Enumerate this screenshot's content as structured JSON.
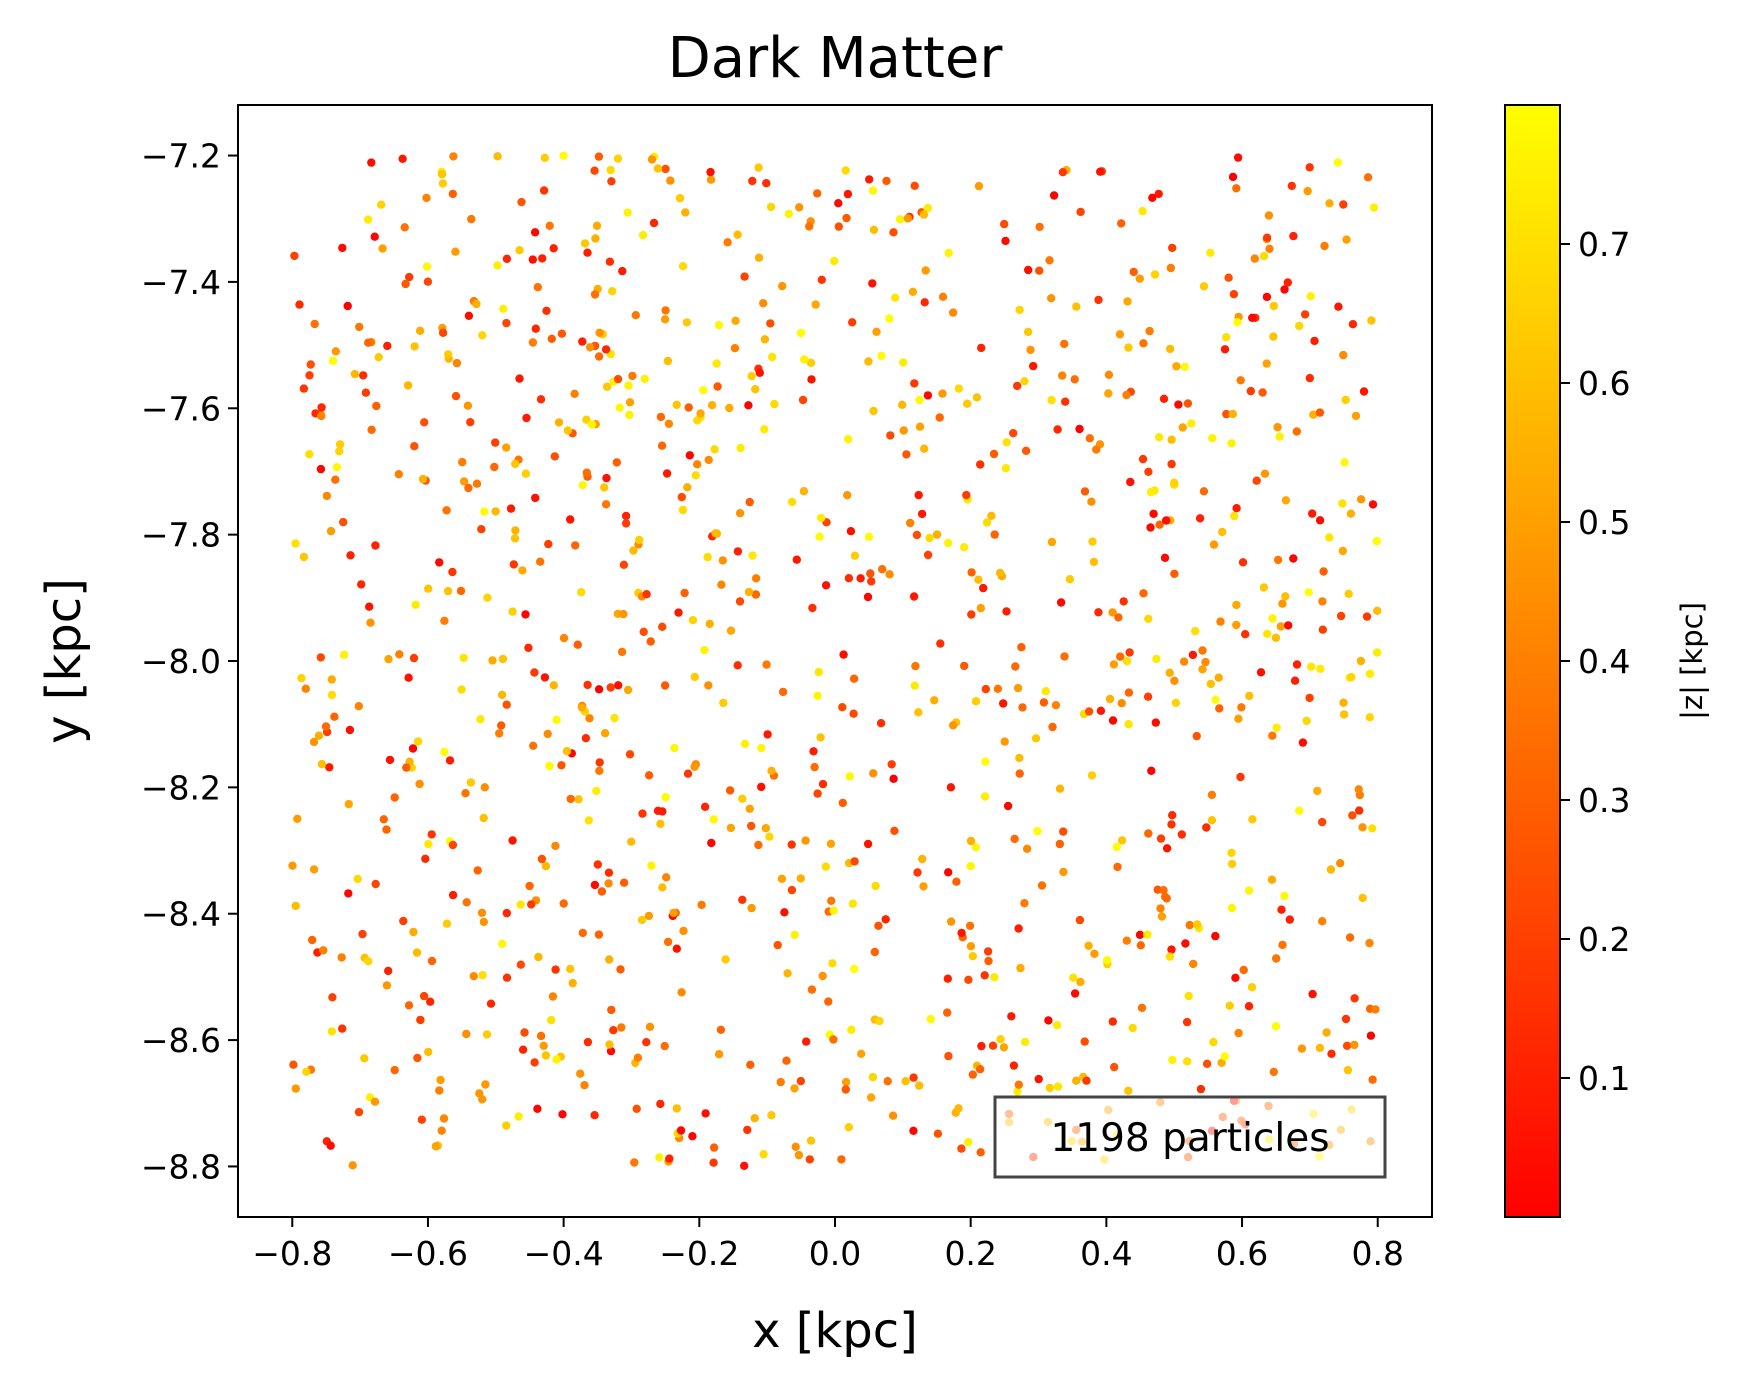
{
  "chart_data": {
    "type": "scatter",
    "title": "Dark Matter",
    "xlabel": "x [kpc]",
    "ylabel": "y [kpc]",
    "xlim": [
      -0.88,
      0.88
    ],
    "ylim": [
      -8.88,
      -7.12
    ],
    "xticks": [
      -0.8,
      -0.6,
      -0.4,
      -0.2,
      0.0,
      0.2,
      0.4,
      0.6,
      0.8
    ],
    "xtick_labels": [
      "−0.8",
      "−0.6",
      "−0.4",
      "−0.2",
      "0.0",
      "0.2",
      "0.4",
      "0.6",
      "0.8"
    ],
    "yticks": [
      -7.2,
      -7.4,
      -7.6,
      -7.8,
      -8.0,
      -8.2,
      -8.4,
      -8.6,
      -8.8
    ],
    "ytick_labels": [
      "−7.2",
      "−7.4",
      "−7.6",
      "−7.8",
      "−8.0",
      "−8.2",
      "−8.4",
      "−8.6",
      "−8.8"
    ],
    "grid": false,
    "colormap": "autumn",
    "colormap_colors": [
      "#ff0000",
      "#ffff00"
    ],
    "colorbar": {
      "label": "|z| [kpc]",
      "range": [
        0.0,
        0.8
      ],
      "ticks": [
        0.1,
        0.2,
        0.3,
        0.4,
        0.5,
        0.6,
        0.7
      ],
      "tick_labels": [
        "0.1",
        "0.2",
        "0.3",
        "0.4",
        "0.5",
        "0.6",
        "0.7"
      ]
    },
    "annotation": {
      "text": "1198 particles",
      "placement": "lower-right"
    },
    "series": [
      {
        "n_points": 1198,
        "x_range": [
          -0.8,
          0.8
        ],
        "y_range": [
          -8.8,
          -7.2
        ],
        "c_range": [
          0.0,
          0.8
        ],
        "seed": 1198,
        "distribution": "uniform"
      }
    ]
  }
}
